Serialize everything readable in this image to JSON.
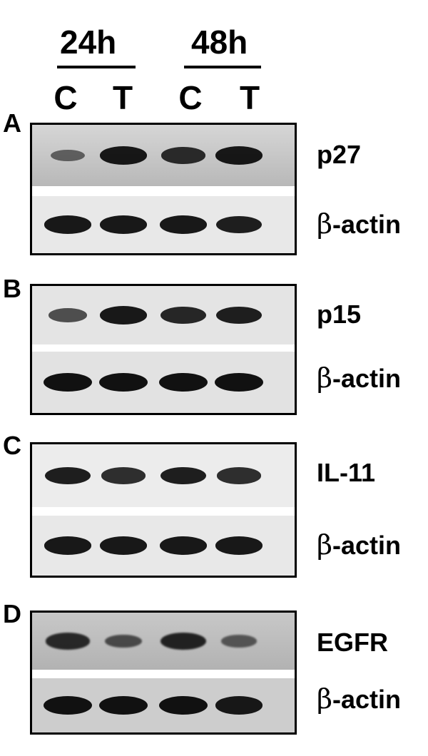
{
  "header": {
    "time_points": [
      "24h",
      "48h"
    ],
    "lanes": [
      "C",
      "T",
      "C",
      "T"
    ]
  },
  "panels": [
    {
      "letter": "A",
      "target": {
        "label": "p27",
        "band_intensities": [
          0.35,
          0.95,
          0.8,
          0.95
        ]
      },
      "loading": {
        "symbol": "β",
        "label": "-actin",
        "band_intensities": [
          0.95,
          0.95,
          0.95,
          0.9
        ]
      }
    },
    {
      "letter": "B",
      "target": {
        "label": "p15",
        "band_intensities": [
          0.55,
          0.95,
          0.85,
          0.9
        ]
      },
      "loading": {
        "symbol": "β",
        "label": "-actin",
        "band_intensities": [
          1.0,
          1.0,
          1.0,
          1.0
        ]
      }
    },
    {
      "letter": "C",
      "target": {
        "label": "IL-11",
        "band_intensities": [
          0.9,
          0.8,
          0.9,
          0.8
        ]
      },
      "loading": {
        "symbol": "β",
        "label": "-actin",
        "band_intensities": [
          0.95,
          0.95,
          0.95,
          0.95
        ]
      }
    },
    {
      "letter": "D",
      "target": {
        "label": "EGFR",
        "band_intensities": [
          0.8,
          0.5,
          0.85,
          0.4
        ]
      },
      "loading": {
        "symbol": "β",
        "label": "-actin",
        "band_intensities": [
          1.0,
          1.0,
          1.0,
          0.95
        ]
      }
    }
  ],
  "colors": {
    "membrane_light": "#e6e6e6",
    "membrane_dark": "#c4c4c4",
    "band": "#111111"
  }
}
